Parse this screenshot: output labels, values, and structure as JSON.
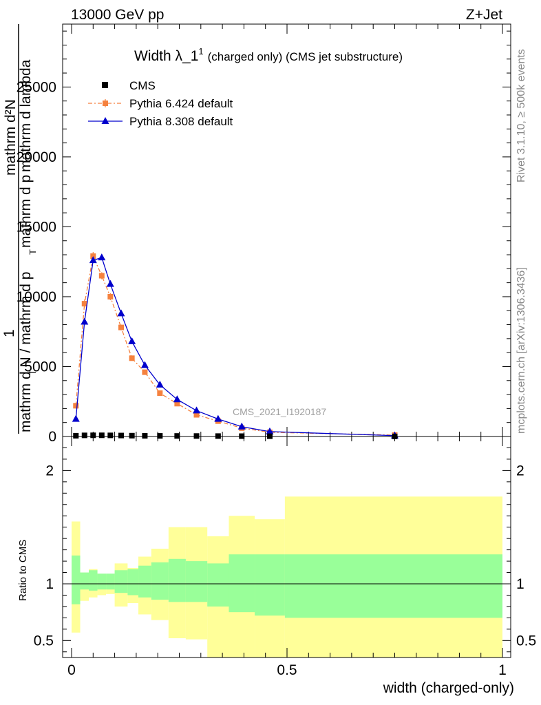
{
  "header": {
    "left": "13000 GeV pp",
    "right": "Z+Jet"
  },
  "side": {
    "rivet": "Rivet 3.1.10, ≥ 500k events",
    "mcplots": "mcplots.cern.ch [arXiv:1306.3436]"
  },
  "colors": {
    "cms": "#000000",
    "pythia6": "#f5813e",
    "pythia8": "#0000cc",
    "band_inner": "#99ff99",
    "band_outer": "#ffff99"
  },
  "chart_data": [
    {
      "type": "line",
      "title": "Width λ_1",
      "title_sup": "1",
      "title_suffix": "(charged only) (CMS jet substructure)",
      "ylabel_lines": [
        "1",
        "mathrm d N / mathrm d p",
        "T",
        "mathrm d",
        "2",
        "N",
        "mathrm d p",
        "T",
        "mathrm d lambda"
      ],
      "ylabel_top": "mathrm d²N",
      "ylabel_bottom": "mathrm d N / mathrm d p",
      "ylabel_T1": "T",
      "ylabel_T2": "T",
      "ylabel_denom2": "mathrm d p",
      "ylabel_denom3": "mathrm d lambda",
      "ylabel_one": "1",
      "watermark": "CMS_2021_I1920187",
      "xlim": [
        0,
        1
      ],
      "ylim": [
        0,
        29500
      ],
      "y_ticks": [
        0,
        5000,
        10000,
        15000,
        20000,
        25000
      ],
      "y_tick_labels": [
        "0",
        "5000",
        "10000",
        "15000",
        "20000",
        "25000"
      ],
      "legend_position": "top-left",
      "series": [
        {
          "name": "CMS",
          "x": [
            0.01,
            0.03,
            0.05,
            0.07,
            0.09,
            0.115,
            0.14,
            0.17,
            0.205,
            0.245,
            0.29,
            0.34,
            0.395,
            0.46,
            0.75
          ],
          "y": [
            55,
            80,
            85,
            85,
            80,
            70,
            60,
            50,
            45,
            40,
            35,
            30,
            25,
            20,
            5
          ]
        },
        {
          "name": "Pythia 6.424 default",
          "x": [
            0.01,
            0.03,
            0.05,
            0.07,
            0.09,
            0.115,
            0.14,
            0.17,
            0.205,
            0.245,
            0.29,
            0.34,
            0.395,
            0.46,
            0.75
          ],
          "y": [
            2200,
            9500,
            12900,
            11500,
            10000,
            7800,
            5600,
            4600,
            3100,
            2350,
            1550,
            1100,
            600,
            300,
            100
          ],
          "yerr": [
            200,
            300,
            300,
            250,
            250,
            200,
            150,
            150,
            100,
            100,
            80,
            60,
            50,
            40,
            20
          ]
        },
        {
          "name": "Pythia 8.308 default",
          "x": [
            0.01,
            0.03,
            0.05,
            0.07,
            0.09,
            0.115,
            0.14,
            0.17,
            0.205,
            0.245,
            0.29,
            0.34,
            0.395,
            0.46,
            0.75
          ],
          "y": [
            1250,
            8200,
            12600,
            12800,
            10900,
            8800,
            6800,
            5100,
            3700,
            2650,
            1850,
            1250,
            700,
            350,
            60
          ]
        }
      ]
    },
    {
      "type": "area",
      "ylabel": "Ratio to CMS",
      "xlabel": "width (charged-only)",
      "xlim": [
        0,
        1
      ],
      "ylim": [
        0.35,
        2.3
      ],
      "y_ticks": [
        0.5,
        1,
        2
      ],
      "y_tick_labels": [
        "0.5",
        "1",
        "2"
      ],
      "x_ticks": [
        0,
        0.5,
        1
      ],
      "x_tick_labels": [
        "0",
        "0.5",
        "1"
      ],
      "reference_line": 1,
      "bin_edges": [
        0,
        0.02,
        0.04,
        0.06,
        0.08,
        0.1,
        0.13,
        0.155,
        0.185,
        0.225,
        0.265,
        0.315,
        0.365,
        0.425,
        0.495,
        1.0
      ],
      "inner_band": {
        "low": [
          0.82,
          0.95,
          0.94,
          0.95,
          0.95,
          0.92,
          0.9,
          0.88,
          0.86,
          0.84,
          0.84,
          0.8,
          0.75,
          0.72,
          0.7
        ],
        "high": [
          1.25,
          1.1,
          1.12,
          1.09,
          1.09,
          1.12,
          1.13,
          1.16,
          1.19,
          1.22,
          1.2,
          1.18,
          1.26,
          1.26,
          1.26
        ]
      },
      "outer_band": {
        "low": [
          0.57,
          0.85,
          0.88,
          0.9,
          0.91,
          0.8,
          0.83,
          0.73,
          0.68,
          0.52,
          0.51,
          0.3,
          0.3,
          0.3,
          0.3
        ],
        "high": [
          1.55,
          1.1,
          1.13,
          1.08,
          1.08,
          1.18,
          1.14,
          1.24,
          1.31,
          1.5,
          1.5,
          1.42,
          1.6,
          1.57,
          1.77
        ]
      }
    }
  ]
}
